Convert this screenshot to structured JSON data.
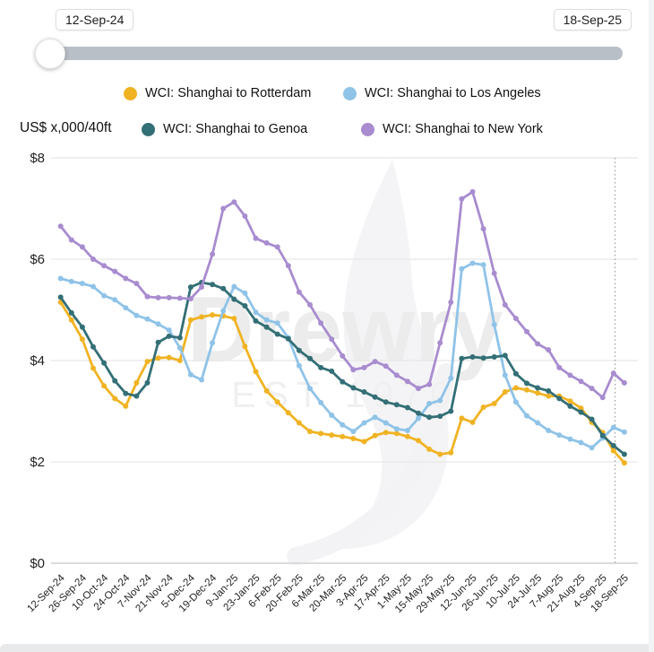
{
  "slider": {
    "start_label": "12-Sep-24",
    "end_label": "18-Sep-25"
  },
  "unit_label": "US$ x,000/40ft",
  "watermark": {
    "brand": "Drewry",
    "est": "EST 1970"
  },
  "chart_data": {
    "type": "line",
    "title": "",
    "xlabel": "",
    "ylabel": "US$ x,000/40ft",
    "ylim": [
      0,
      8
    ],
    "yticks": [
      "$0",
      "$2",
      "$4",
      "$6",
      "$8"
    ],
    "grid": true,
    "legend_position": "top",
    "marker_line_x_label": "18-Sep-25",
    "x": [
      "12-Sep-24",
      "19-Sep-24",
      "26-Sep-24",
      "3-Oct-24",
      "10-Oct-24",
      "17-Oct-24",
      "24-Oct-24",
      "31-Oct-24",
      "7-Nov-24",
      "14-Nov-24",
      "21-Nov-24",
      "28-Nov-24",
      "5-Dec-24",
      "12-Dec-24",
      "19-Dec-24",
      "2-Jan-25",
      "9-Jan-25",
      "16-Jan-25",
      "23-Jan-25",
      "30-Jan-25",
      "6-Feb-25",
      "13-Feb-25",
      "20-Feb-25",
      "27-Feb-25",
      "6-Mar-25",
      "13-Mar-25",
      "20-Mar-25",
      "27-Mar-25",
      "3-Apr-25",
      "10-Apr-25",
      "17-Apr-25",
      "24-Apr-25",
      "1-May-25",
      "8-May-25",
      "15-May-25",
      "22-May-25",
      "29-May-25",
      "5-Jun-25",
      "12-Jun-25",
      "19-Jun-25",
      "26-Jun-25",
      "3-Jul-25",
      "10-Jul-25",
      "17-Jul-25",
      "24-Jul-25",
      "31-Jul-25",
      "7-Aug-25",
      "14-Aug-25",
      "21-Aug-25",
      "28-Aug-25",
      "4-Sep-25",
      "11-Sep-25",
      "18-Sep-25"
    ],
    "x_tick_labels": [
      "12-Sep-24",
      "26-Sep-24",
      "10-Oct-24",
      "24-Oct-24",
      "7-Nov-24",
      "21-Nov-24",
      "5-Dec-24",
      "19-Dec-24",
      "9-Jan-25",
      "23-Jan-25",
      "6-Feb-25",
      "20-Feb-25",
      "6-Mar-25",
      "20-Mar-25",
      "3-Apr-25",
      "17-Apr-25",
      "1-May-25",
      "15-May-25",
      "29-May-25",
      "12-Jun-25",
      "26-Jun-25",
      "10-Jul-25",
      "24-Jul-25",
      "7-Aug-25",
      "21-Aug-25",
      "4-Sep-25",
      "18-Sep-25"
    ],
    "series": [
      {
        "name": "WCI: Shanghai to Rotterdam",
        "color": "#F0B323",
        "values": [
          5.15,
          4.8,
          4.42,
          3.85,
          3.5,
          3.25,
          3.1,
          3.56,
          3.98,
          4.05,
          4.06,
          4.0,
          4.8,
          4.86,
          4.9,
          4.88,
          4.83,
          4.28,
          3.78,
          3.4,
          3.18,
          2.97,
          2.77,
          2.6,
          2.56,
          2.53,
          2.5,
          2.46,
          2.4,
          2.52,
          2.58,
          2.56,
          2.5,
          2.42,
          2.25,
          2.15,
          2.18,
          2.86,
          2.78,
          3.08,
          3.15,
          3.38,
          3.46,
          3.42,
          3.36,
          3.3,
          3.3,
          3.2,
          3.06,
          2.78,
          2.58,
          2.22,
          1.98
        ]
      },
      {
        "name": "WCI: Shanghai to Los Angeles",
        "color": "#8FC3E8",
        "values": [
          5.62,
          5.56,
          5.52,
          5.46,
          5.28,
          5.2,
          5.04,
          4.89,
          4.82,
          4.72,
          4.6,
          4.25,
          3.72,
          3.62,
          4.35,
          4.98,
          5.46,
          5.33,
          4.95,
          4.8,
          4.74,
          4.45,
          3.9,
          3.45,
          3.17,
          2.92,
          2.73,
          2.6,
          2.77,
          2.88,
          2.77,
          2.65,
          2.62,
          2.86,
          3.15,
          3.21,
          3.65,
          5.81,
          5.92,
          5.89,
          4.71,
          3.71,
          3.18,
          2.91,
          2.77,
          2.62,
          2.53,
          2.45,
          2.38,
          2.28,
          2.47,
          2.68,
          2.59
        ]
      },
      {
        "name": "WCI: Shanghai to Genoa",
        "color": "#336F76",
        "values": [
          5.25,
          4.94,
          4.66,
          4.27,
          3.95,
          3.6,
          3.35,
          3.3,
          3.56,
          4.36,
          4.48,
          4.45,
          5.45,
          5.54,
          5.5,
          5.42,
          5.21,
          5.08,
          4.78,
          4.66,
          4.52,
          4.43,
          4.2,
          4.04,
          3.86,
          3.79,
          3.58,
          3.46,
          3.38,
          3.28,
          3.18,
          3.13,
          3.07,
          2.96,
          2.88,
          2.9,
          3.0,
          4.04,
          4.07,
          4.05,
          4.07,
          4.1,
          3.74,
          3.55,
          3.46,
          3.4,
          3.25,
          3.1,
          2.98,
          2.84,
          2.52,
          2.32,
          2.15
        ]
      },
      {
        "name": "WCI: Shanghai to New York",
        "color": "#A88CCF",
        "values": [
          6.65,
          6.38,
          6.24,
          6.0,
          5.87,
          5.76,
          5.62,
          5.52,
          5.26,
          5.24,
          5.24,
          5.23,
          5.22,
          5.45,
          6.1,
          7.0,
          7.13,
          6.85,
          6.41,
          6.32,
          6.24,
          5.87,
          5.35,
          5.1,
          4.74,
          4.42,
          4.09,
          3.82,
          3.86,
          3.98,
          3.89,
          3.71,
          3.59,
          3.45,
          3.53,
          4.35,
          5.15,
          7.19,
          7.33,
          6.6,
          5.72,
          5.1,
          4.83,
          4.57,
          4.33,
          4.21,
          3.86,
          3.71,
          3.59,
          3.45,
          3.27,
          3.75,
          3.56
        ]
      }
    ]
  }
}
